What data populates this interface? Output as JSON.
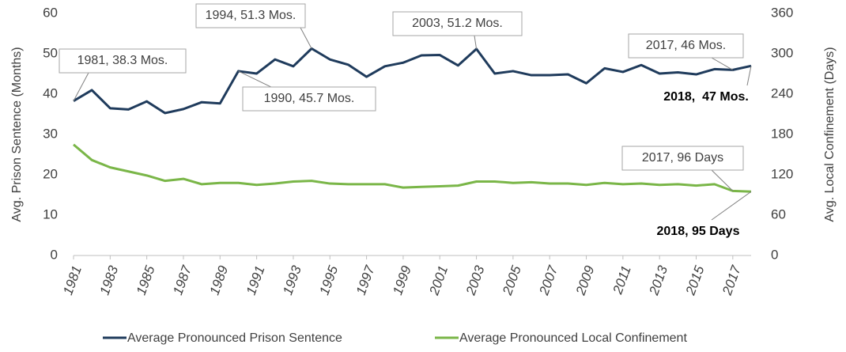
{
  "chart_data": {
    "type": "line",
    "y_label": "Avg. Prison Sentence (Months)",
    "y2_label": "Avg. Local Confinement (Days)",
    "x": [
      1981,
      1982,
      1983,
      1984,
      1985,
      1986,
      1987,
      1988,
      1989,
      1990,
      1991,
      1992,
      1993,
      1994,
      1995,
      1996,
      1997,
      1998,
      1999,
      2000,
      2001,
      2002,
      2003,
      2004,
      2005,
      2006,
      2007,
      2008,
      2009,
      2010,
      2011,
      2012,
      2013,
      2014,
      2015,
      2016,
      2017,
      2018
    ],
    "xlim": [
      1981,
      2018
    ],
    "xticks": [
      1981,
      1983,
      1985,
      1987,
      1989,
      1991,
      1993,
      1995,
      1997,
      1999,
      2001,
      2003,
      2005,
      2007,
      2009,
      2011,
      2013,
      2015,
      2017
    ],
    "ylim": [
      0,
      60
    ],
    "yticks": [
      0,
      10,
      20,
      30,
      40,
      50,
      60
    ],
    "y2lim": [
      0,
      360
    ],
    "y2ticks": [
      0,
      60,
      120,
      180,
      240,
      300,
      360
    ],
    "grid": false,
    "legend": "bottom",
    "series": [
      {
        "name": "Average Pronounced Prison Sentence",
        "color": "#1f3b5c",
        "values": [
          38.3,
          41.0,
          36.5,
          36.2,
          38.2,
          35.3,
          36.3,
          38.0,
          37.7,
          45.7,
          45.1,
          48.6,
          46.9,
          51.3,
          48.6,
          47.3,
          44.3,
          46.9,
          47.8,
          49.6,
          49.7,
          47.1,
          51.2,
          45.1,
          45.7,
          44.7,
          44.7,
          44.9,
          42.7,
          46.4,
          45.5,
          47.2,
          45.1,
          45.4,
          44.9,
          46.2,
          46,
          47
        ]
      },
      {
        "name": "Average Pronounced Local Confinement",
        "color": "#7ab648",
        "axis": "y2",
        "values": [
          165,
          142,
          131,
          125,
          119,
          111,
          114,
          106,
          108,
          108,
          105,
          107,
          110,
          111,
          107,
          106,
          106,
          106,
          101,
          102,
          103,
          104,
          110,
          110,
          108,
          109,
          107,
          107,
          105,
          108,
          106,
          107,
          105,
          106,
          104,
          106,
          96,
          95
        ]
      }
    ],
    "annotations": [
      {
        "text": "1981, 38.3 Mos."
      },
      {
        "text": "1994, 51.3 Mos."
      },
      {
        "text": "1990, 45.7 Mos."
      },
      {
        "text": "2003, 51.2 Mos."
      },
      {
        "text": "2017, 46 Mos."
      },
      {
        "text": "2018,  47 Mos.",
        "bold": true
      },
      {
        "text": "2017, 96 Days"
      },
      {
        "text": "2018, 95 Days",
        "bold": true
      }
    ]
  }
}
